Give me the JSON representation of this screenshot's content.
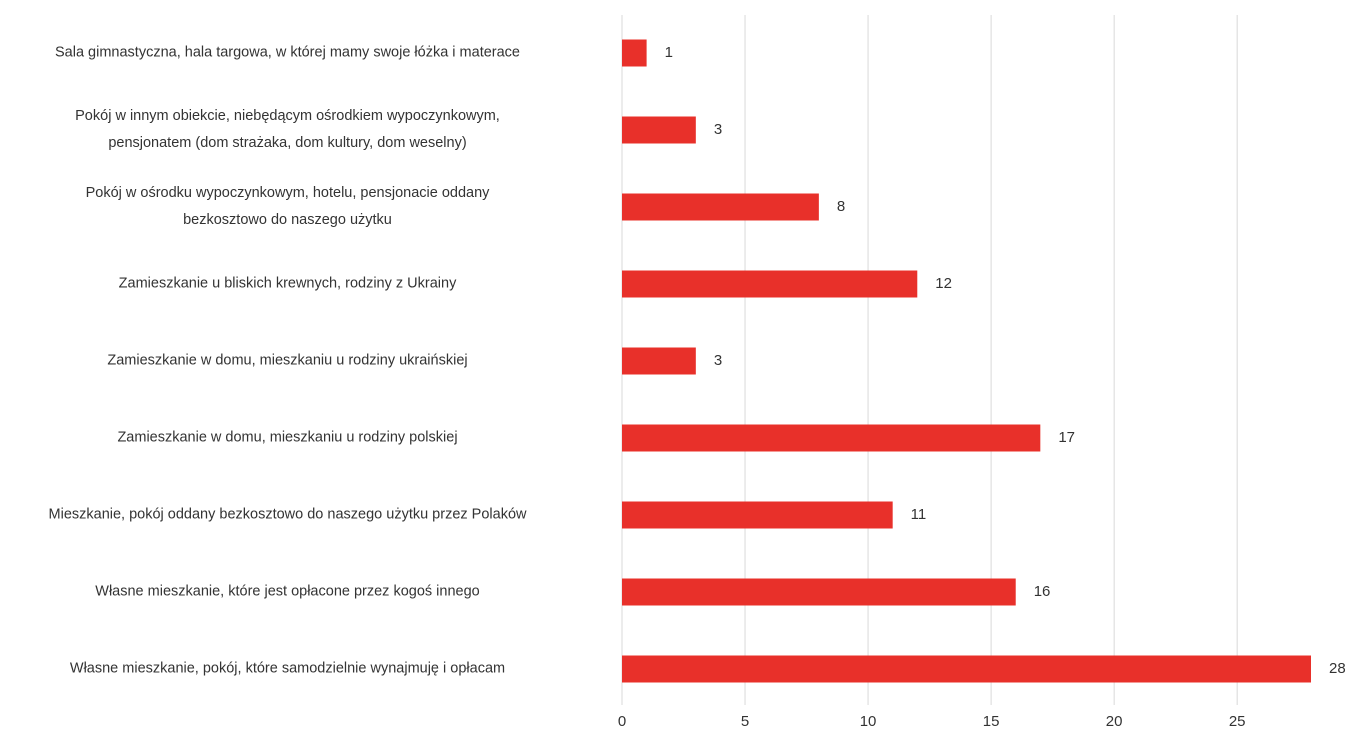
{
  "chart_data": {
    "type": "bar",
    "orientation": "horizontal",
    "categories": [
      "Sala gimnastyczna, hala targowa, w której mamy swoje łóżka i materace",
      "Pokój w innym obiekcie, niebędącym ośrodkiem wypoczynkowym,\npensjonatem (dom strażaka, dom kultury, dom weselny)",
      "Pokój w ośrodku wypoczynkowym, hotelu, pensjonacie oddany\nbezkosztowo do naszego użytku",
      "Zamieszkanie u bliskich krewnych, rodziny z Ukrainy",
      "Zamieszkanie  w domu, mieszkaniu u rodziny ukraińskiej",
      "Zamieszkanie w domu, mieszkaniu u rodziny polskiej",
      "Mieszkanie, pokój oddany bezkosztowo do naszego użytku przez Polaków",
      "Własne mieszkanie, które jest opłacone przez kogoś innego",
      "Własne mieszkanie, pokój, które samodzielnie wynajmuję i opłacam"
    ],
    "values": [
      1,
      3,
      8,
      12,
      3,
      17,
      11,
      16,
      28
    ],
    "color": "#e8302a",
    "xlim": [
      0,
      28
    ],
    "xticks": [
      0,
      5,
      10,
      15,
      20,
      25
    ],
    "grid": true
  }
}
